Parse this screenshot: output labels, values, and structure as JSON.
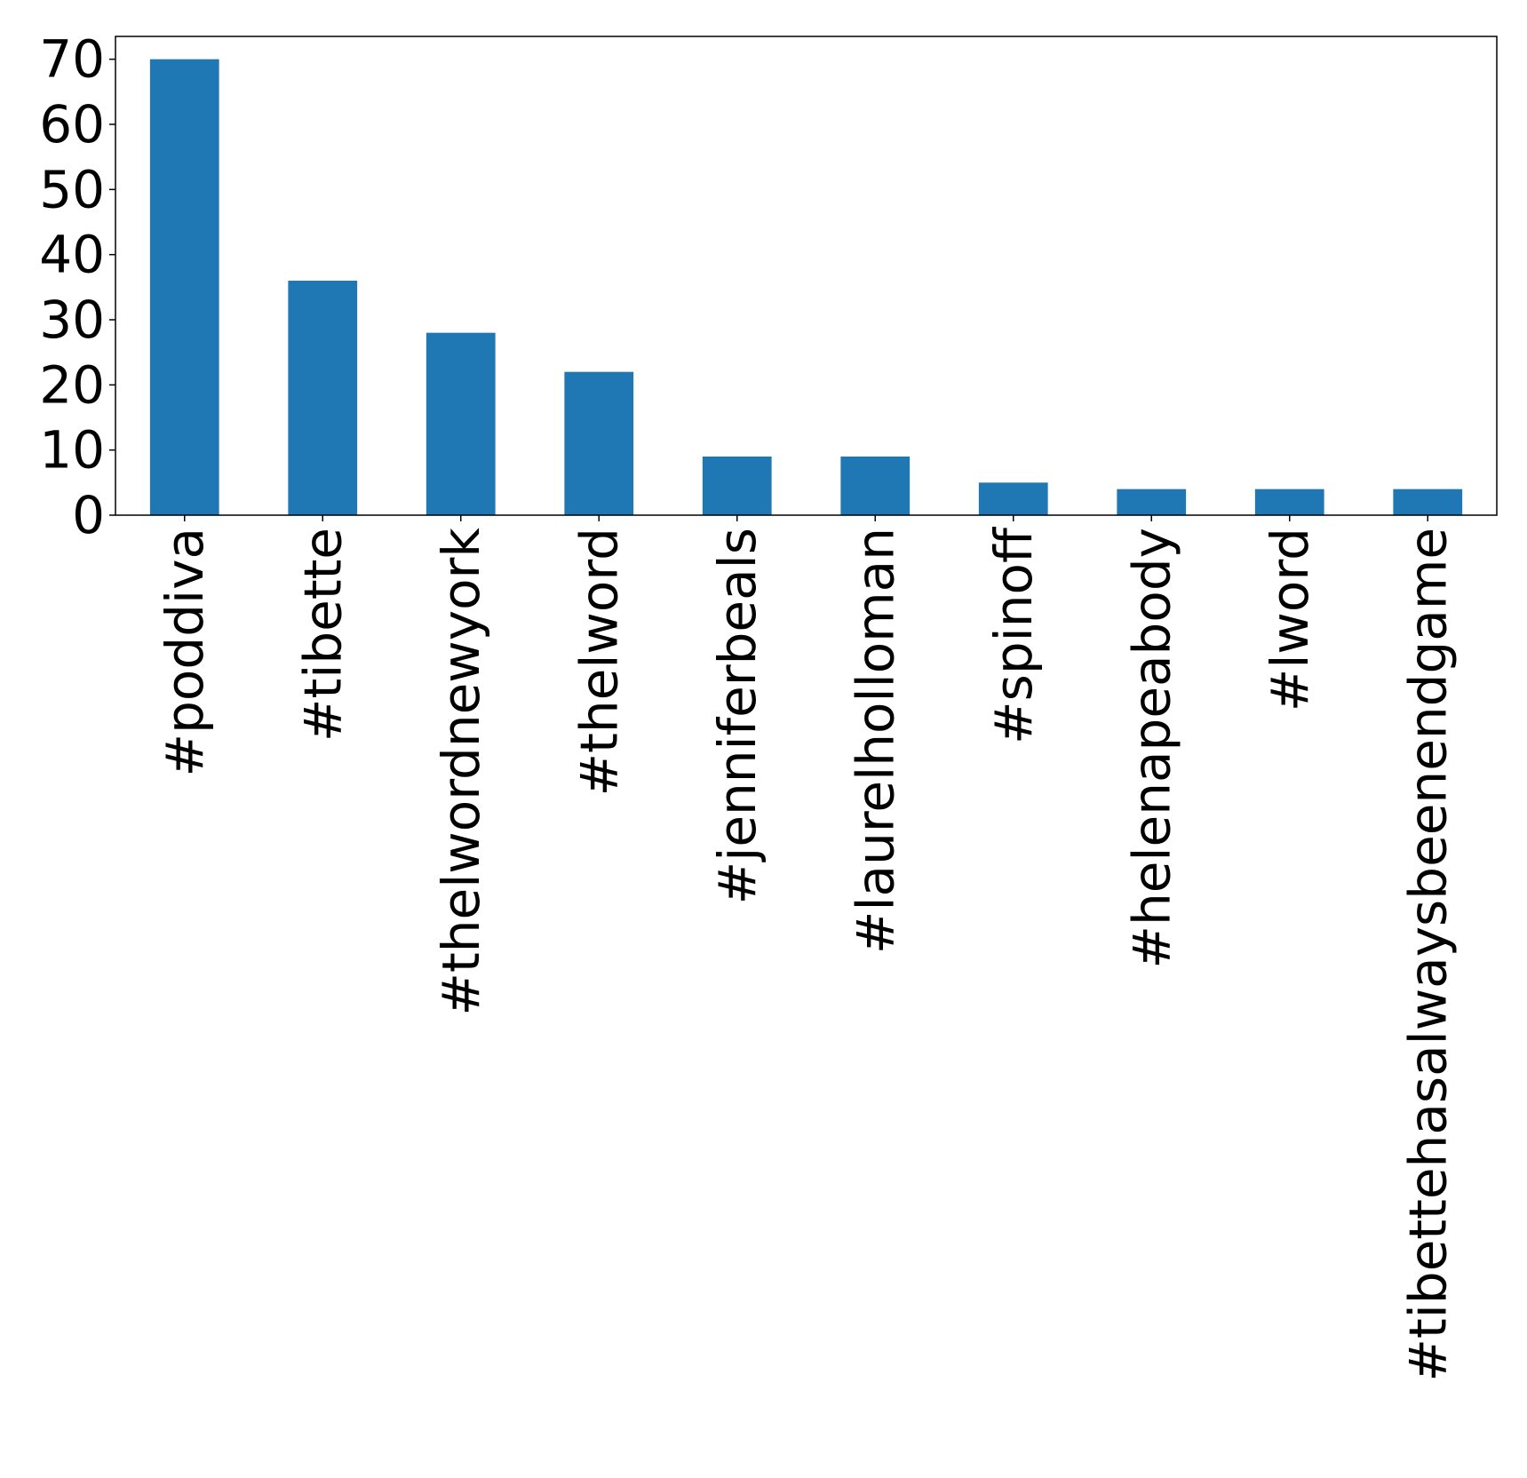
{
  "chart_data": {
    "type": "bar",
    "categories": [
      "#poddiva",
      "#tibette",
      "#thelwordnewyork",
      "#thelword",
      "#jenniferbeals",
      "#laurelholloman",
      "#spinoff",
      "#helenapeabody",
      "#lword",
      "#tibettehasalwaysbeenendgame"
    ],
    "values": [
      70,
      36,
      28,
      22,
      9,
      9,
      5,
      4,
      4,
      4
    ],
    "title": "",
    "xlabel": "",
    "ylabel": "",
    "ylim": [
      0,
      73.5
    ],
    "yticks": [
      0,
      10,
      20,
      30,
      40,
      50,
      60,
      70
    ],
    "bar_color": "#1f77b4",
    "grid": false,
    "legend": "none"
  }
}
